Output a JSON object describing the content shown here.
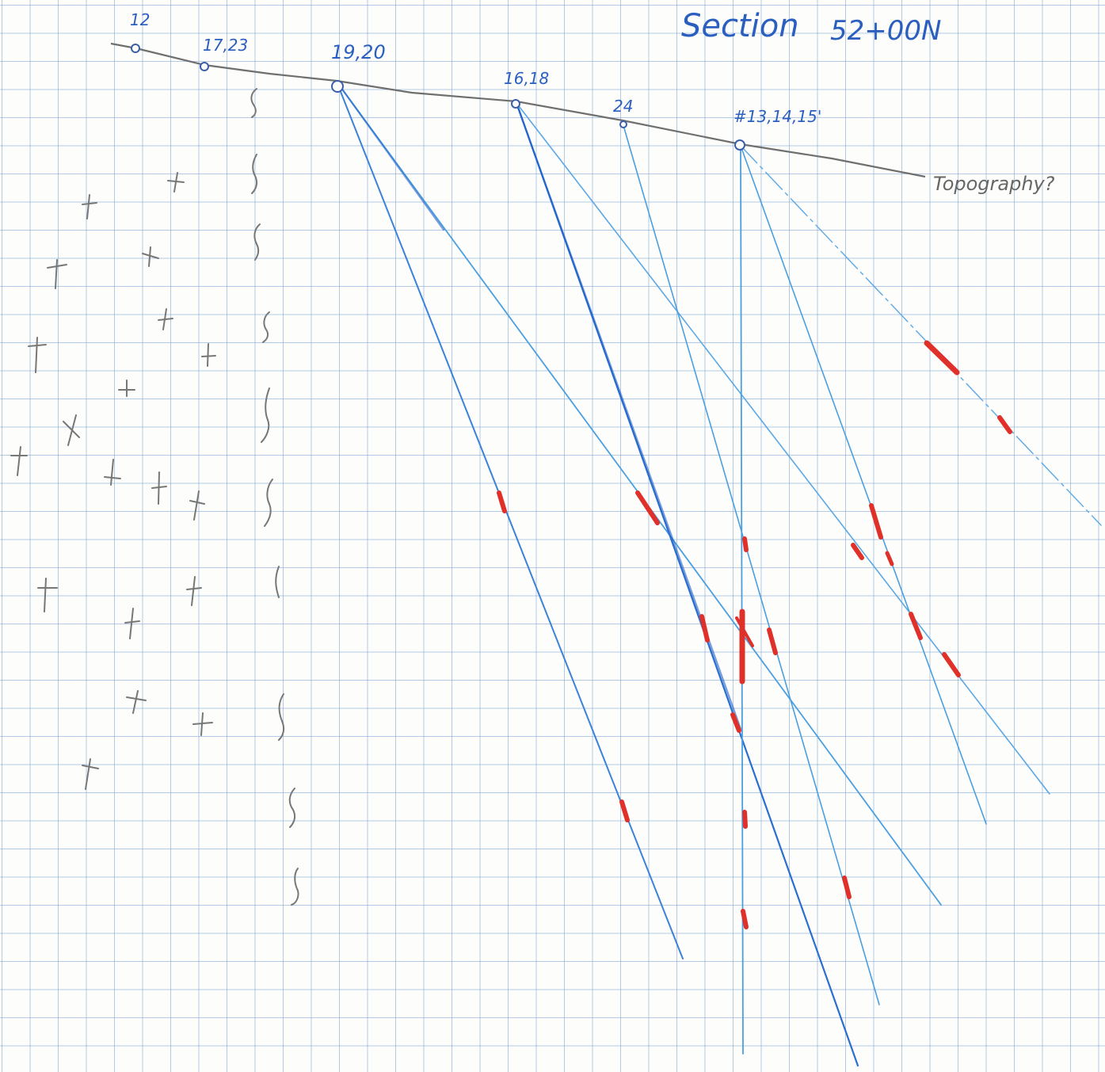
{
  "title": "Section",
  "section_id": "52+00N",
  "topography_label": "Topography?",
  "collars": [
    {
      "id": "collar-12",
      "label": "12"
    },
    {
      "id": "collar-17-23",
      "label": "17,23"
    },
    {
      "id": "collar-19-20",
      "label": "19,20"
    },
    {
      "id": "collar-16-18",
      "label": "16,18"
    },
    {
      "id": "collar-24",
      "label": "24"
    },
    {
      "id": "collar-13-14-15",
      "label": "#13,14,15'"
    }
  ],
  "colors": {
    "grid": "#8fb3dc",
    "topography": "#6f6f6f",
    "drillhole": "#4a9fe0",
    "drillhole_dark": "#1f5fc8",
    "collar_label": "#2a5fc0",
    "mineral_intercept": "#e0302a",
    "pencil": "#777777"
  },
  "icons": {
    "granite_symbol": "plus-cross",
    "schist_symbol": "s-squiggle",
    "collar_symbol": "circle"
  }
}
